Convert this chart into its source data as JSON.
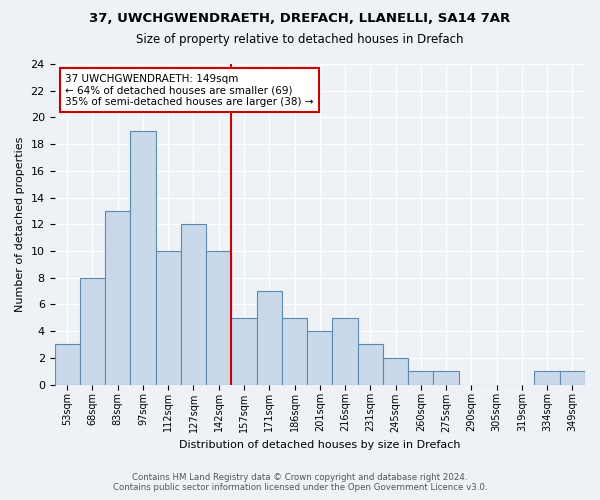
{
  "title1": "37, UWCHGWENDRAETH, DREFACH, LLANELLI, SA14 7AR",
  "title2": "Size of property relative to detached houses in Drefach",
  "xlabel": "Distribution of detached houses by size in Drefach",
  "ylabel": "Number of detached properties",
  "categories": [
    "53sqm",
    "68sqm",
    "83sqm",
    "97sqm",
    "112sqm",
    "127sqm",
    "142sqm",
    "157sqm",
    "171sqm",
    "186sqm",
    "201sqm",
    "216sqm",
    "231sqm",
    "245sqm",
    "260sqm",
    "275sqm",
    "290sqm",
    "305sqm",
    "319sqm",
    "334sqm",
    "349sqm"
  ],
  "values": [
    3,
    8,
    13,
    19,
    10,
    12,
    10,
    5,
    7,
    5,
    4,
    5,
    3,
    2,
    1,
    1,
    0,
    0,
    0,
    1,
    1
  ],
  "bar_color": "#c9d9ea",
  "bar_edge_color": "#5a8ab0",
  "vline_color": "#cc0000",
  "annotation_text": "37 UWCHGWENDRAETH: 149sqm\n← 64% of detached houses are smaller (69)\n35% of semi-detached houses are larger (38) →",
  "annotation_box_color": "#ffffff",
  "annotation_box_edge": "#cc0000",
  "ylim": [
    0,
    24
  ],
  "yticks": [
    0,
    2,
    4,
    6,
    8,
    10,
    12,
    14,
    16,
    18,
    20,
    22,
    24
  ],
  "footer1": "Contains HM Land Registry data © Crown copyright and database right 2024.",
  "footer2": "Contains public sector information licensed under the Open Government Licence v3.0.",
  "bg_color": "#eef2f7",
  "plot_bg_color": "#eef2f7",
  "grid_color": "#ffffff"
}
